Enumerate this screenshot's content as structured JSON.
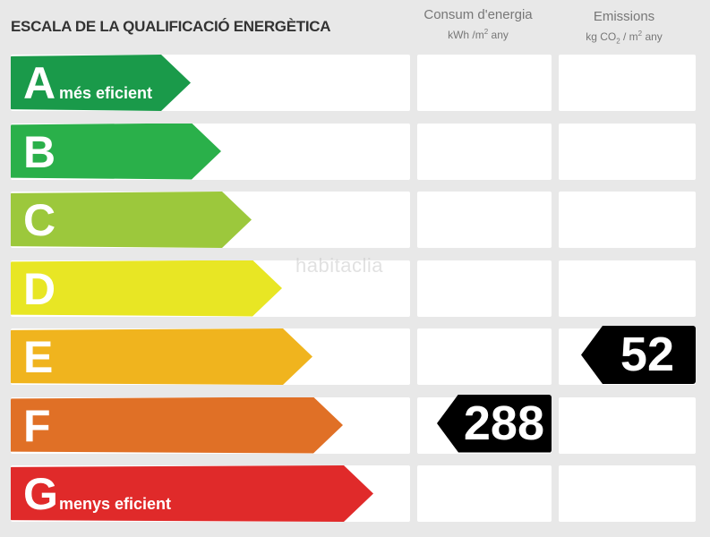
{
  "title": "ESCALA DE LA QUALIFICACIÓ ENERGÈTICA",
  "columns": {
    "energy": {
      "label": "Consum d'energia",
      "unit_prefix": "kWh /m",
      "unit_sup": "2",
      "unit_suffix": " any"
    },
    "emissions": {
      "label": "Emissions",
      "unit_prefix": "kg CO",
      "unit_sub": "2",
      "unit_mid": " / m",
      "unit_sup": "2",
      "unit_suffix": " any"
    }
  },
  "ratings": [
    {
      "letter": "A",
      "sublabel": "més eficient",
      "color": "#1a9a4a"
    },
    {
      "letter": "B",
      "sublabel": "",
      "color": "#2ab04a"
    },
    {
      "letter": "C",
      "sublabel": "",
      "color": "#9cc83c"
    },
    {
      "letter": "D",
      "sublabel": "",
      "color": "#e8e624"
    },
    {
      "letter": "E",
      "sublabel": "",
      "color": "#f0b41e"
    },
    {
      "letter": "F",
      "sublabel": "",
      "color": "#e07026"
    },
    {
      "letter": "G",
      "sublabel": "menys eficient",
      "color": "#e02a2a"
    }
  ],
  "energy_value": {
    "value": "288",
    "rating": "F"
  },
  "emissions_value": {
    "value": "52",
    "rating": "E"
  },
  "watermark": "habitaclia"
}
